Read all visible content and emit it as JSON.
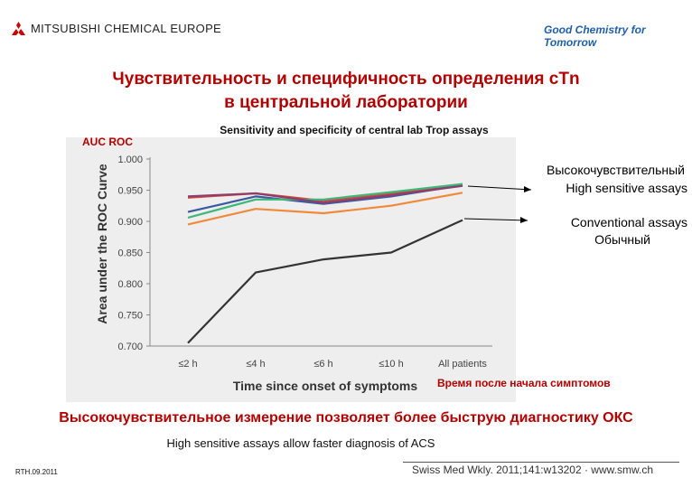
{
  "header": {
    "brand_left": "MITSUBISHI CHEMICAL EUROPE",
    "brand_right": "Good Chemistry for Tomorrow",
    "brand_color": "#1f5fa8"
  },
  "title": {
    "line1": "Чувствительность и специфичность определения cTn",
    "line2": "в центральной лаборатории"
  },
  "auc_label": "AUC ROC",
  "annotations": {
    "high_sensitive_ru": "Высокочувствительный",
    "high_sensitive_en": "High sensitive assays",
    "conventional_en": "Conventional assays",
    "conventional_ru": "Обычный",
    "time_ru": "Время после начала симптомов"
  },
  "conclusion": {
    "ru": "Высокочувствительное измерение позволяет более быструю диагностику ОКС",
    "en": "High sensitive assays allow faster diagnosis of ACS"
  },
  "footer": {
    "code": "RTH.09.2011",
    "citation": "Swiss Med Wkly. 2011;141:w13202 · www.smw.ch"
  },
  "chart_data": {
    "type": "line",
    "title": "Sensitivity and specificity of central lab Trop assays",
    "xlabel": "Time since onset of symptoms",
    "ylabel": "Area under the ROC Curve",
    "categories": [
      "≤2 h",
      "≤4 h",
      "≤6 h",
      "≤10 h",
      "All patients"
    ],
    "yticks": [
      "0.700",
      "0.750",
      "0.800",
      "0.850",
      "0.900",
      "0.950",
      "1.000"
    ],
    "ylim": [
      0.7,
      1.0
    ],
    "grid": false,
    "series": [
      {
        "color": "#d9443b",
        "values": [
          0.938,
          0.945,
          0.933,
          0.945,
          0.958
        ]
      },
      {
        "color": "#3a5aa0",
        "values": [
          0.915,
          0.94,
          0.928,
          0.94,
          0.958
        ]
      },
      {
        "color": "#3cb878",
        "values": [
          0.906,
          0.935,
          0.935,
          0.947,
          0.96
        ]
      },
      {
        "color": "#8e3e6a",
        "values": [
          0.94,
          0.945,
          0.93,
          0.942,
          0.957
        ]
      },
      {
        "color": "#f08a3a",
        "values": [
          0.895,
          0.92,
          0.913,
          0.925,
          0.946
        ]
      },
      {
        "color": "#333333",
        "values": [
          0.705,
          0.818,
          0.839,
          0.85,
          0.902
        ]
      }
    ]
  }
}
